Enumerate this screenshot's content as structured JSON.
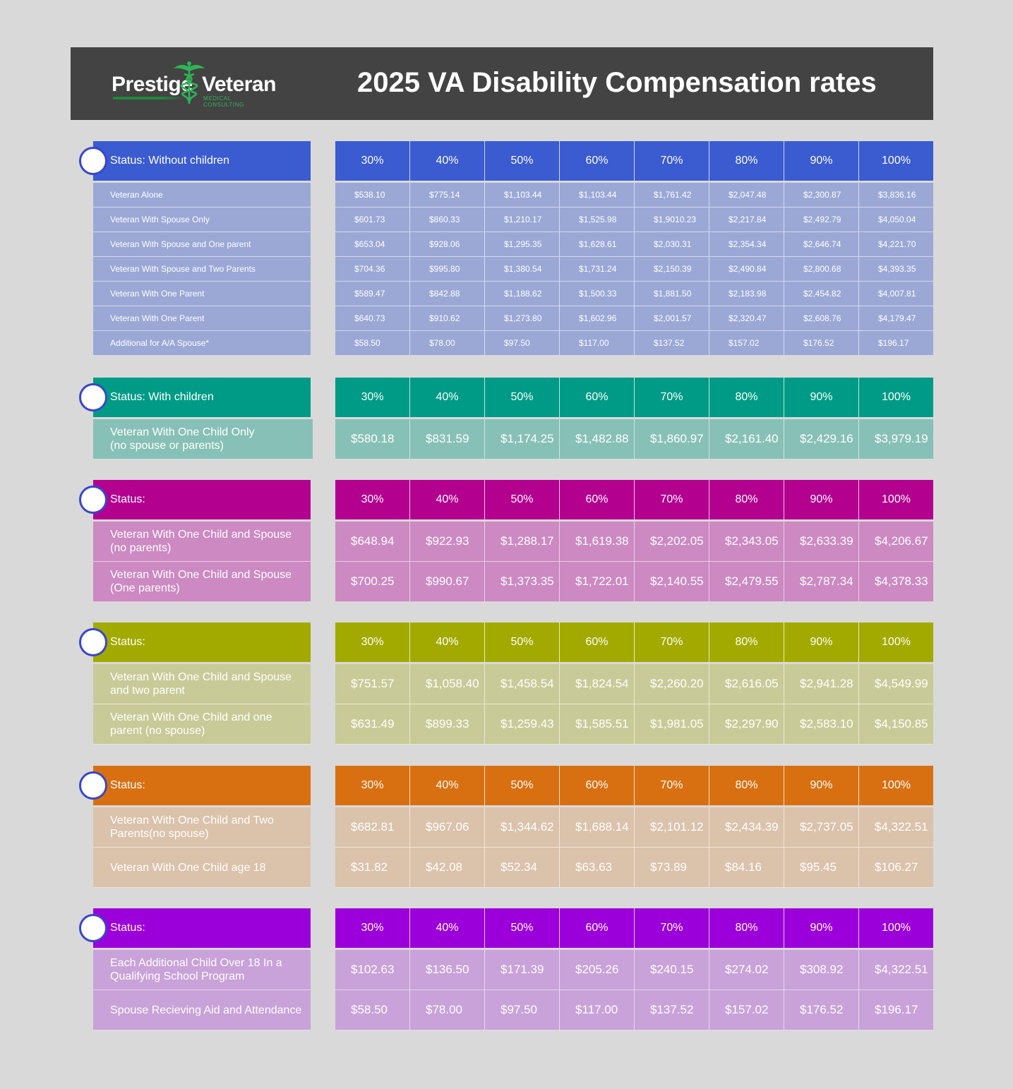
{
  "header": {
    "logo_left": "Prestige",
    "logo_right": "Veteran",
    "logo_sub": "MEDICAL CONSULTING",
    "title": "2025 VA Disability Compensation rates"
  },
  "colors": {
    "blue_head": "#3b5bd1",
    "blue_row": "#9ba8d6",
    "teal_head": "#009b86",
    "teal_row": "#87c0b6",
    "magenta_head": "#b3008f",
    "magenta_row": "#cc89c2",
    "olive_head": "#a2aa00",
    "olive_row": "#c8cb97",
    "orange_head": "#d87012",
    "orange_row": "#dbc2ab",
    "violet_head": "#9b00da",
    "violet_row": "#c8a2d9"
  },
  "percent_labels": [
    "30%",
    "40%",
    "50%",
    "60%",
    "70%",
    "80%",
    "90%",
    "100%"
  ],
  "sections": [
    {
      "status": "Status: Without children",
      "rows": [
        {
          "label": "Veteran Alone",
          "values": [
            "$538.10",
            "$775.14",
            "$1,103.44",
            "$1,103.44",
            "$1,761.42",
            "$2,047.48",
            "$2,300.87",
            "$3,836.16"
          ]
        },
        {
          "label": "Veteran With Spouse Only",
          "values": [
            "$601.73",
            "$860.33",
            "$1,210.17",
            "$1,525.98",
            "$1,9010.23",
            "$2,217.84",
            "$2,492.79",
            "$4,050.04"
          ]
        },
        {
          "label": "Veteran With Spouse and One parent",
          "values": [
            "$653.04",
            "$928.06",
            "$1,295.35",
            "$1,628.61",
            "$2,030.31",
            "$2,354.34",
            "$2,646.74",
            "$4,221.70"
          ]
        },
        {
          "label": "Veteran With Spouse and Two Parents",
          "values": [
            "$704.36",
            "$995.80",
            "$1,380.54",
            "$1,731.24",
            "$2,150.39",
            "$2,490.84",
            "$2,800.68",
            "$4,393.35"
          ]
        },
        {
          "label": "Veteran With One Parent",
          "values": [
            "$589.47",
            "$842.88",
            "$1,188.62",
            "$1,500.33",
            "$1,881.50",
            "$2,183.98",
            "$2,454.82",
            "$4,007.81"
          ]
        },
        {
          "label": "Veteran With One Parent",
          "values": [
            "$640.73",
            "$910.62",
            "$1,273.80",
            "$1,602.96",
            "$2,001.57",
            "$2,320.47",
            "$2,608.76",
            "$4,179.47"
          ]
        },
        {
          "label": "Additional for A/A Spouse*",
          "values": [
            "$58.50",
            "$78.00",
            "$97.50",
            "$117.00",
            "$137.52",
            "$157.02",
            "$176.52",
            "$196.17"
          ]
        }
      ]
    },
    {
      "status": "Status: With children",
      "rows": [
        {
          "label": "Veteran With One Child Only\n(no spouse or parents)",
          "values": [
            "$580.18",
            "$831.59",
            "$1,174.25",
            "$1,482.88",
            "$1,860.97",
            "$2,161.40",
            "$2,429.16",
            "$3,979.19"
          ]
        }
      ]
    },
    {
      "status": "Status:",
      "rows": [
        {
          "label": "Veteran With One Child and Spouse (no parents)",
          "values": [
            "$648.94",
            "$922.93",
            "$1,288.17",
            "$1,619.38",
            "$2,202.05",
            "$2,343.05",
            "$2,633.39",
            "$4,206.67"
          ]
        },
        {
          "label": "Veteran With One Child and Spouse (One parents)",
          "values": [
            "$700.25",
            "$990.67",
            "$1,373.35",
            "$1,722.01",
            "$2,140.55",
            "$2,479.55",
            "$2,787.34",
            "$4,378.33"
          ]
        }
      ]
    },
    {
      "status": "Status:",
      "rows": [
        {
          "label": "Veteran With One Child and Spouse and two parent",
          "values": [
            "$751.57",
            "$1,058.40",
            "$1,458.54",
            "$1,824.54",
            "$2,260.20",
            "$2,616.05",
            "$2,941.28",
            "$4,549.99"
          ]
        },
        {
          "label": "Veteran With One Child and one parent (no spouse)",
          "values": [
            "$631.49",
            "$899.33",
            "$1,259.43",
            "$1,585.51",
            "$1,981.05",
            "$2,297.90",
            "$2,583.10",
            "$4,150.85"
          ]
        }
      ]
    },
    {
      "status": "Status:",
      "rows": [
        {
          "label": "Veteran With One Child and Two Parents(no spouse)",
          "values": [
            "$682.81",
            "$967.06",
            "$1,344.62",
            "$1,688.14",
            "$2,101.12",
            "$2,434.39",
            "$2,737.05",
            "$4,322.51"
          ]
        },
        {
          "label": "Veteran With One Child age 18",
          "values": [
            "$31.82",
            "$42.08",
            "$52.34",
            "$63.63",
            "$73.89",
            "$84.16",
            "$95.45",
            "$106.27"
          ]
        }
      ]
    },
    {
      "status": "Status:",
      "rows": [
        {
          "label": "Each Additional Child Over 18 In a Qualifying School Program",
          "values": [
            "$102.63",
            "$136.50",
            "$171.39",
            "$205.26",
            "$240.15",
            "$274.02",
            "$308.92",
            "$4,322.51"
          ]
        },
        {
          "label": "Spouse Recieving Aid and Attendance",
          "values": [
            "$58.50",
            "$78.00",
            "$97.50",
            "$117.00",
            "$137.52",
            "$157.02",
            "$176.52",
            "$196.17"
          ]
        }
      ]
    }
  ]
}
